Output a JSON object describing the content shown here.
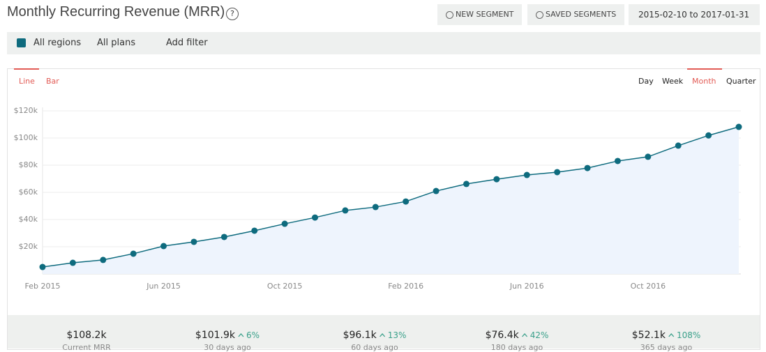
{
  "header": {
    "title": "Monthly Recurring Revenue (MRR)",
    "help": "?",
    "buttons": [
      "NEW SEGMENT",
      "SAVED SEGMENTS"
    ],
    "date_range": "2015-02-10 to 2017-01-31"
  },
  "filters": [
    "All regions",
    "All plans",
    "Add filter"
  ],
  "chart_tabs": [
    "Line",
    "Bar"
  ],
  "period_tabs": [
    "Day",
    "Week",
    "Month",
    "Quarter"
  ],
  "chart_data": {
    "type": "line",
    "categories": [
      "Feb 2015",
      null,
      null,
      null,
      "Jun 2015",
      null,
      null,
      null,
      "Oct 2015",
      null,
      null,
      null,
      "Feb 2016",
      null,
      null,
      null,
      "Jun 2016",
      null,
      null,
      null,
      "Oct 2016",
      null,
      null,
      null
    ],
    "series": [
      {
        "name": "MRR",
        "color": "#0e6b7e",
        "values": [
          5100,
          8200,
          10300,
          14900,
          20500,
          23600,
          27200,
          31800,
          36900,
          41500,
          46700,
          49200,
          53300,
          61000,
          66200,
          69700,
          72800,
          74900,
          77900,
          83100,
          86200,
          94400,
          101900,
          108200
        ]
      }
    ],
    "ylim": [
      0,
      120000
    ],
    "yticks": [
      {
        "value": 20000,
        "label": "$20k"
      },
      {
        "value": 40000,
        "label": "$40k"
      },
      {
        "value": 60000,
        "label": "$60k"
      },
      {
        "value": 80000,
        "label": "$80k"
      },
      {
        "value": 100000,
        "label": "$100k"
      },
      {
        "value": 120000,
        "label": "$120k"
      }
    ],
    "grid": true
  },
  "stats": [
    {
      "value": "$108.2k",
      "label": "Current MRR"
    },
    {
      "value": "$101.9k",
      "change": "6%",
      "label": "30 days ago"
    },
    {
      "value": "$96.1k",
      "change": "13%",
      "label": "60 days ago"
    },
    {
      "value": "$76.4k",
      "change": "42%",
      "label": "180 days ago"
    },
    {
      "value": "$52.1k",
      "change": "108%",
      "label": "365 days ago"
    }
  ]
}
